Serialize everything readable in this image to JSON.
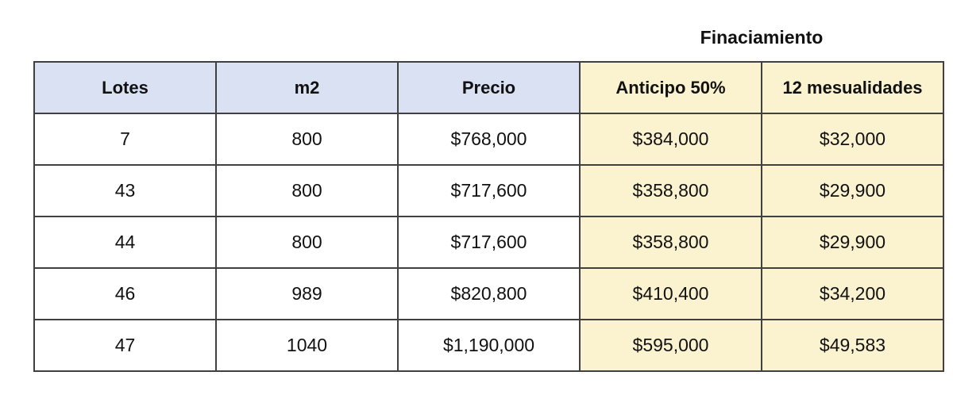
{
  "pricing_table": {
    "financing_band_label": "Finaciamiento",
    "columns": [
      "Lotes",
      "m2",
      "Precio",
      "Anticipo 50%",
      "12 mesualidades"
    ],
    "rows": [
      [
        "7",
        "800",
        "$768,000",
        "$384,000",
        "$32,000"
      ],
      [
        "43",
        "800",
        "$717,600",
        "$358,800",
        "$29,900"
      ],
      [
        "44",
        "800",
        "$717,600",
        "$358,800",
        "$29,900"
      ],
      [
        "46",
        "989",
        "$820,800",
        "$410,400",
        "$34,200"
      ],
      [
        "47",
        "1040",
        "$1,190,000",
        "$595,000",
        "$49,583"
      ]
    ]
  },
  "colors": {
    "header_blue": "#d9e1f2",
    "financing_yellow": "#fbf2d0",
    "border": "#404040",
    "text": "#111111",
    "page_background": "#ffffff"
  }
}
